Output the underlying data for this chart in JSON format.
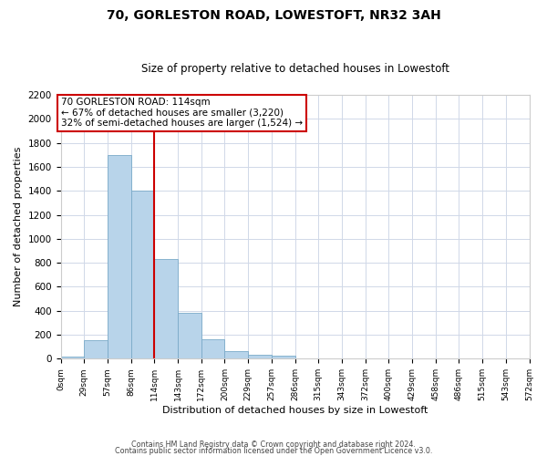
{
  "title": "70, GORLESTON ROAD, LOWESTOFT, NR32 3AH",
  "subtitle": "Size of property relative to detached houses in Lowestoft",
  "xlabel": "Distribution of detached houses by size in Lowestoft",
  "ylabel": "Number of detached properties",
  "bar_color": "#b8d4ea",
  "bar_edge_color": "#7aaac8",
  "vline_color": "#cc0000",
  "annotation_text": "70 GORLESTON ROAD: 114sqm\n← 67% of detached houses are smaller (3,220)\n32% of semi-detached houses are larger (1,524) →",
  "annotation_box_edge": "#cc0000",
  "tick_labels": [
    "0sqm",
    "29sqm",
    "57sqm",
    "86sqm",
    "114sqm",
    "143sqm",
    "172sqm",
    "200sqm",
    "229sqm",
    "257sqm",
    "286sqm",
    "315sqm",
    "343sqm",
    "372sqm",
    "400sqm",
    "429sqm",
    "458sqm",
    "486sqm",
    "515sqm",
    "543sqm",
    "572sqm"
  ],
  "bar_values": [
    20,
    155,
    1700,
    1400,
    830,
    380,
    165,
    65,
    30,
    25,
    0,
    0,
    0,
    0,
    0,
    0,
    0,
    0,
    0,
    0
  ],
  "ylim": [
    0,
    2200
  ],
  "yticks": [
    0,
    200,
    400,
    600,
    800,
    1000,
    1200,
    1400,
    1600,
    1800,
    2000,
    2200
  ],
  "footer_line1": "Contains HM Land Registry data © Crown copyright and database right 2024.",
  "footer_line2": "Contains public sector information licensed under the Open Government Licence v3.0.",
  "grid_color": "#d0d8e8",
  "vline_x_index": 4
}
